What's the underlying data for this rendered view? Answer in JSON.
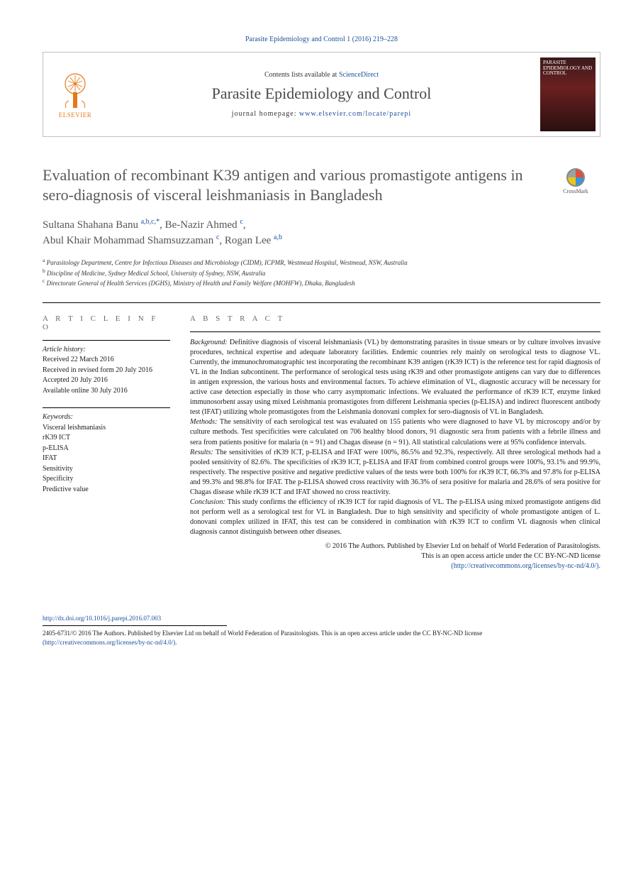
{
  "colors": {
    "link": "#1a4f9c",
    "elsevier_orange": "#e67817",
    "title_gray": "#585858",
    "body_text": "#1a1a1a",
    "muted": "#6a6a6a"
  },
  "top_citation": "Parasite Epidemiology and Control 1 (2016) 219–228",
  "header": {
    "publisher_label": "ELSEVIER",
    "contents_prefix": "Contents lists available at ",
    "contents_link": "ScienceDirect",
    "journal_name": "Parasite Epidemiology and Control",
    "homepage_prefix": "journal homepage: ",
    "homepage_url": "www.elsevier.com/locate/parepi",
    "cover_title": "PARASITE EPIDEMIOLOGY AND CONTROL"
  },
  "crossmark_label": "CrossMark",
  "article": {
    "title": "Evaluation of recombinant K39 antigen and various promastigote antigens in sero-diagnosis of visceral leishmaniasis in Bangladesh",
    "authors_html": "Sultana Shahana Banu <sup>a,b,c,*</sup>, Be-Nazir Ahmed <sup>c</sup>,<br>Abul Khair Mohammad Shamsuzzaman <sup>c</sup>, Rogan Lee <sup>a,b</sup>",
    "affiliations": [
      {
        "key": "a",
        "text": "Parasitology Department, Centre for Infectious Diseases and Microbiology (CIDM), ICPMR, Westmead Hospital, Westmead, NSW, Australia"
      },
      {
        "key": "b",
        "text": "Discipline of Medicine, Sydney Medical School, University of Sydney, NSW, Australia"
      },
      {
        "key": "c",
        "text": "Directorate General of Health Services (DGHS), Ministry of Health and Family Welfare (MOHFW), Dhaka, Bangladesh"
      }
    ]
  },
  "info": {
    "heading": "A R T I C L E   I N F O",
    "history_label": "Article history:",
    "history": [
      "Received 22 March 2016",
      "Received in revised form 20 July 2016",
      "Accepted 20 July 2016",
      "Available online 30 July 2016"
    ],
    "keywords_label": "Keywords:",
    "keywords": [
      "Visceral leishmaniasis",
      "rK39 ICT",
      "p-ELISA",
      "IFAT",
      "Sensitivity",
      "Specificity",
      "Predictive value"
    ]
  },
  "abstract": {
    "heading": "A B S T R A C T",
    "sections": [
      {
        "lead": "Background:",
        "body": "Definitive diagnosis of visceral leishmaniasis (VL) by demonstrating parasites in tissue smears or by culture involves invasive procedures, technical expertise and adequate laboratory facilities. Endemic countries rely mainly on serological tests to diagnose VL. Currently, the immunochromatographic test incorporating the recombinant K39 antigen (rK39 ICT) is the reference test for rapid diagnosis of VL in the Indian subcontinent. The performance of serological tests using rK39 and other promastigote antigens can vary due to differences in antigen expression, the various hosts and environmental factors. To achieve elimination of VL, diagnostic accuracy will be necessary for active case detection especially in those who carry asymptomatic infections. We evaluated the performance of rK39 ICT, enzyme linked immunosorbent assay using mixed Leishmania promastigotes from different Leishmania species (p-ELISA) and indirect fluorescent antibody test (IFAT) utilizing whole promastigotes from the Leishmania donovani complex for sero-diagnosis of VL in Bangladesh."
      },
      {
        "lead": "Methods:",
        "body": "The sensitivity of each serological test was evaluated on 155 patients who were diagnosed to have VL by microscopy and/or by culture methods. Test specificities were calculated on 706 healthy blood donors, 91 diagnostic sera from patients with a febrile illness and sera from patients positive for malaria (n = 91) and Chagas disease (n = 91). All statistical calculations were at 95% confidence intervals."
      },
      {
        "lead": "Results:",
        "body": "The sensitivities of rK39 ICT, p-ELISA and IFAT were 100%, 86.5% and 92.3%, respectively. All three serological methods had a pooled sensitivity of 82.6%. The specificities of rK39 ICT, p-ELISA and IFAT from combined control groups were 100%, 93.1% and 99.9%, respectively. The respective positive and negative predictive values of the tests were both 100% for rK39 ICT, 66.3% and 97.8% for p-ELISA and 99.3% and 98.8% for IFAT. The p-ELISA showed cross reactivity with 36.3% of sera positive for malaria and 28.6% of sera positive for Chagas disease while rK39 ICT and IFAT showed no cross reactivity."
      },
      {
        "lead": "Conclusion:",
        "body": "This study confirms the efficiency of rK39 ICT for rapid diagnosis of VL. The p-ELISA using mixed promastigote antigens did not perform well as a serological test for VL in Bangladesh. Due to high sensitivity and specificity of whole promastigote antigen of L. donovani complex utilized in IFAT, this test can be considered in combination with rK39 ICT to confirm VL diagnosis when clinical diagnosis cannot distinguish between other diseases."
      }
    ],
    "copyright_line1": "© 2016 The Authors. Published by Elsevier Ltd on behalf of World Federation of Parasitologists.",
    "copyright_line2": "This is an open access article under the CC BY-NC-ND license",
    "copyright_url": "(http://creativecommons.org/licenses/by-nc-nd/4.0/)."
  },
  "footer": {
    "doi": "http://dx.doi.org/10.1016/j.parepi.2016.07.003",
    "issn_line": "2405-6731/© 2016 The Authors. Published by Elsevier Ltd on behalf of World Federation of Parasitologists. This is an open access article under the CC BY-NC-ND license",
    "license_url": "(http://creativecommons.org/licenses/by-nc-nd/4.0/)."
  }
}
